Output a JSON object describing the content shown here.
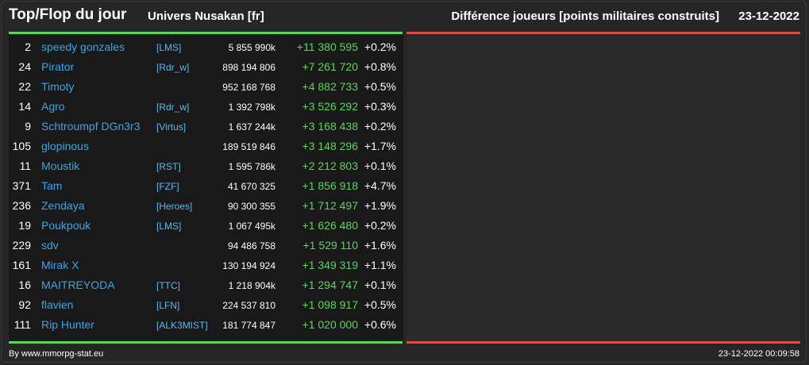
{
  "header": {
    "title": "Top/Flop du jour",
    "universe": "Univers Nusakan [fr]",
    "metric": "Différence joueurs [points militaires construits]",
    "date": "23-12-2022"
  },
  "rows": [
    {
      "rank": "2",
      "name": "speedy gonzales",
      "tag": "[LMS]",
      "points": "5 855 990k",
      "delta": "+11 380 595",
      "pct": "+0.2%"
    },
    {
      "rank": "24",
      "name": "Pirator",
      "tag": "[Rdr_w]",
      "points": "898 194 806",
      "delta": "+7 261 720",
      "pct": "+0.8%"
    },
    {
      "rank": "22",
      "name": "Timoty",
      "tag": "",
      "points": "952 168 768",
      "delta": "+4 882 733",
      "pct": "+0.5%"
    },
    {
      "rank": "14",
      "name": "Agro",
      "tag": "[Rdr_w]",
      "points": "1 392 798k",
      "delta": "+3 526 292",
      "pct": "+0.3%"
    },
    {
      "rank": "9",
      "name": "Schtroumpf DGn3r3",
      "tag": "[Virtus]",
      "points": "1 637 244k",
      "delta": "+3 168 438",
      "pct": "+0.2%"
    },
    {
      "rank": "105",
      "name": "glopinous",
      "tag": "",
      "points": "189 519 846",
      "delta": "+3 148 296",
      "pct": "+1.7%"
    },
    {
      "rank": "11",
      "name": "Moustik",
      "tag": "[RST]",
      "points": "1 595 786k",
      "delta": "+2 212 803",
      "pct": "+0.1%"
    },
    {
      "rank": "371",
      "name": "Tam",
      "tag": "[FZF]",
      "points": "41 670 325",
      "delta": "+1 856 918",
      "pct": "+4.7%"
    },
    {
      "rank": "236",
      "name": "Zendaya",
      "tag": "[Heroes]",
      "points": "90 300 355",
      "delta": "+1 712 497",
      "pct": "+1.9%"
    },
    {
      "rank": "19",
      "name": "Poukpouk",
      "tag": "[LMS]",
      "points": "1 067 495k",
      "delta": "+1 626 480",
      "pct": "+0.2%"
    },
    {
      "rank": "229",
      "name": "sdv",
      "tag": "",
      "points": "94 486 758",
      "delta": "+1 529 110",
      "pct": "+1.6%"
    },
    {
      "rank": "161",
      "name": "Mirak X",
      "tag": "",
      "points": "130 194 924",
      "delta": "+1 349 319",
      "pct": "+1.1%"
    },
    {
      "rank": "16",
      "name": "MAITREYODA",
      "tag": "[TTC]",
      "points": "1 218 904k",
      "delta": "+1 294 747",
      "pct": "+0.1%"
    },
    {
      "rank": "92",
      "name": "flavien",
      "tag": "[LFN]",
      "points": "224 537 810",
      "delta": "+1 098 917",
      "pct": "+0.5%"
    },
    {
      "rank": "111",
      "name": "Rip Hunter",
      "tag": "[ALK3MIST]",
      "points": "181 774 847",
      "delta": "+1 020 000",
      "pct": "+0.6%"
    }
  ],
  "footer": {
    "credit": "By www.mmorpg-stat.eu",
    "timestamp": "23-12-2022 00:09:58"
  },
  "colors": {
    "background": "#262626",
    "top_accent": "#5bd55b",
    "flop_accent": "#d4504a",
    "player_link": "#3aa6e6"
  }
}
